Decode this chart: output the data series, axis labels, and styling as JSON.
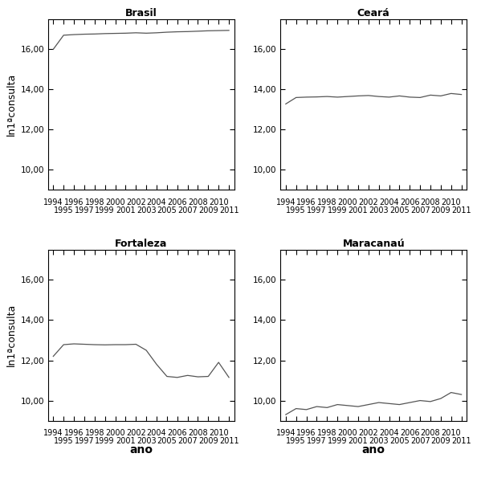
{
  "years": [
    1994,
    1995,
    1996,
    1997,
    1998,
    1999,
    2000,
    2001,
    2002,
    2003,
    2004,
    2005,
    2006,
    2007,
    2008,
    2009,
    2010,
    2011
  ],
  "brasil": [
    16.0,
    16.7,
    16.73,
    16.75,
    16.76,
    16.78,
    16.79,
    16.8,
    16.82,
    16.8,
    16.82,
    16.85,
    16.87,
    16.88,
    16.9,
    16.92,
    16.93,
    16.94
  ],
  "ceara": [
    13.28,
    13.6,
    13.62,
    13.63,
    13.65,
    13.62,
    13.65,
    13.68,
    13.7,
    13.65,
    13.62,
    13.68,
    13.62,
    13.6,
    13.72,
    13.68,
    13.8,
    13.75
  ],
  "fortaleza": [
    12.2,
    12.78,
    12.82,
    12.8,
    12.78,
    12.77,
    12.78,
    12.78,
    12.8,
    12.5,
    11.8,
    11.2,
    11.15,
    11.25,
    11.18,
    11.2,
    11.9,
    11.15
  ],
  "maracanaú": [
    9.3,
    9.6,
    9.55,
    9.7,
    9.65,
    9.8,
    9.75,
    9.7,
    9.8,
    9.9,
    9.85,
    9.8,
    9.9,
    10.0,
    9.95,
    10.1,
    10.4,
    10.3
  ],
  "titles": [
    "Brasil",
    "Ceará",
    "Fortaleza",
    "Maracan aú"
  ],
  "ylabel": "ln1ªconsulta",
  "xlabel": "ano",
  "ylim": [
    9.0,
    17.5
  ],
  "yticks": [
    10.0,
    12.0,
    14.0,
    16.0
  ],
  "ytick_labels": [
    "10,00",
    "12,00",
    "14,00",
    "16,00"
  ],
  "line_color": "#555555",
  "bg_color": "#ffffff",
  "tick_fontsize": 7.5,
  "label_fontsize": 9,
  "title_fontsize": 9
}
